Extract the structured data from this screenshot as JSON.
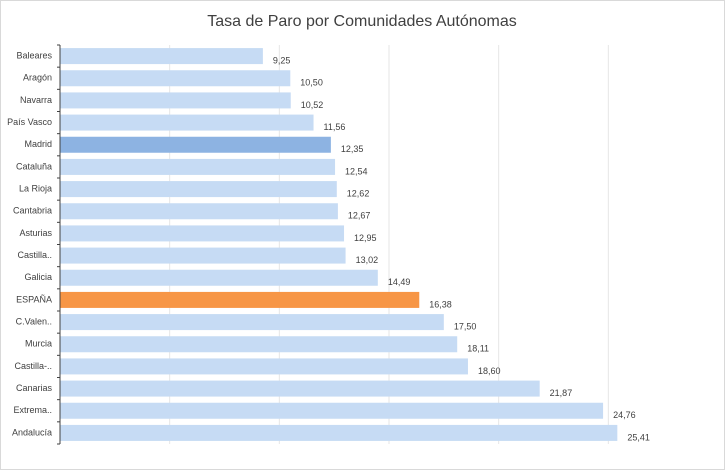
{
  "chart_data": {
    "type": "bar",
    "orientation": "horizontal",
    "title": "Tasa de Paro por Comunidades Autónomas",
    "categories": [
      "Baleares",
      "Aragón",
      "Navarra",
      "País Vasco",
      "Madrid",
      "Cataluña",
      "La Rioja",
      "Cantabria",
      "Asturias",
      "Castilla..",
      "Galicia",
      "ESPAÑA",
      "C.Valen..",
      "Murcia",
      "Castilla-..",
      "Canarias",
      "Extrema..",
      "Andalucía"
    ],
    "values": [
      9.25,
      10.5,
      10.52,
      11.56,
      12.35,
      12.54,
      12.62,
      12.67,
      12.95,
      13.02,
      14.49,
      16.38,
      17.5,
      18.11,
      18.6,
      21.87,
      24.76,
      25.41
    ],
    "value_labels": [
      "9,25",
      "10,50",
      "10,52",
      "11,56",
      "12,35",
      "12,54",
      "12,62",
      "12,67",
      "12,95",
      "13,02",
      "14,49",
      "16,38",
      "17,50",
      "18,11",
      "18,60",
      "21,87",
      "24,76",
      "25,41"
    ],
    "colors": [
      "#c6dbf4",
      "#c6dbf4",
      "#c6dbf4",
      "#c6dbf4",
      "#8db3e2",
      "#c6dbf4",
      "#c6dbf4",
      "#c6dbf4",
      "#c6dbf4",
      "#c6dbf4",
      "#c6dbf4",
      "#f79646",
      "#c6dbf4",
      "#c6dbf4",
      "#c6dbf4",
      "#c6dbf4",
      "#c6dbf4",
      "#c6dbf4"
    ],
    "xlim": [
      0,
      30
    ],
    "xticks": [
      5,
      10,
      15,
      20,
      25
    ],
    "grid": true
  }
}
